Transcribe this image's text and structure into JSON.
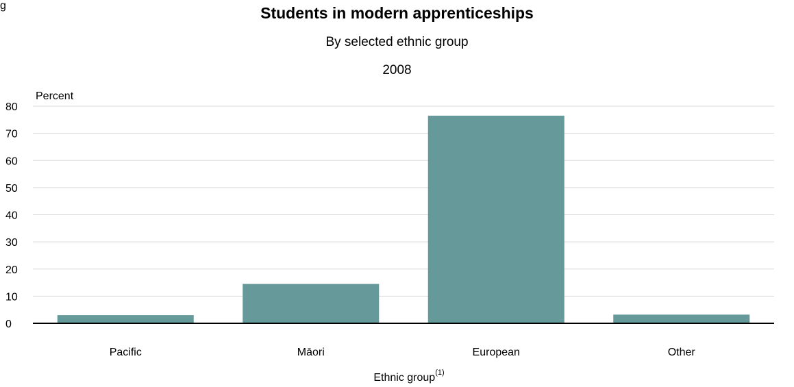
{
  "figure_letter": "g",
  "chart_data": {
    "type": "bar",
    "title": "Students in modern apprenticeships",
    "subtitle": "By selected ethnic group",
    "period": "2008",
    "ylabel": "Percent",
    "xlabel": "Ethnic group",
    "xlabel_note": "(1)",
    "categories": [
      "Pacific",
      "Māori",
      "European",
      "Other"
    ],
    "values": [
      3.0,
      14.5,
      76.5,
      3.2
    ],
    "ylim": [
      0,
      80
    ],
    "yticks": [
      0,
      10,
      20,
      30,
      40,
      50,
      60,
      70,
      80
    ],
    "grid": true,
    "bar_color": "#669999",
    "grid_color": "#d9d9d9",
    "axis_color": "#000000"
  }
}
